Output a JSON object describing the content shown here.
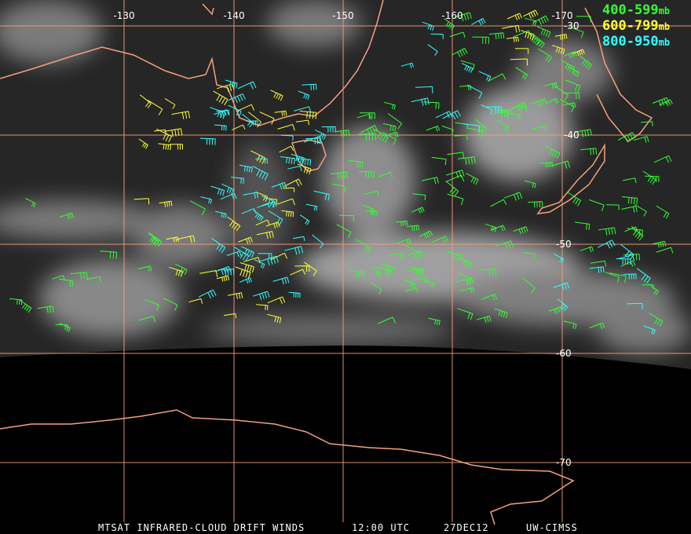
{
  "map": {
    "longitude_labels": [
      "-130",
      "-140",
      "-150",
      "-160",
      "-170"
    ],
    "latitude_labels": [
      "-30",
      "-40",
      "-50",
      "-60",
      "-70"
    ],
    "legend": [
      {
        "range": "400-599",
        "unit": "mb",
        "color": "#33ff33"
      },
      {
        "range": "600-799",
        "unit": "mb",
        "color": "#ffff33"
      },
      {
        "range": "800-950",
        "unit": "mb",
        "color": "#33ffff"
      }
    ],
    "footer": {
      "title": "MTSAT INFRARED-CLOUD DRIFT WINDS",
      "time": "12:00 UTC",
      "date": "27DEC12",
      "source": "UW-CIMSS"
    }
  }
}
